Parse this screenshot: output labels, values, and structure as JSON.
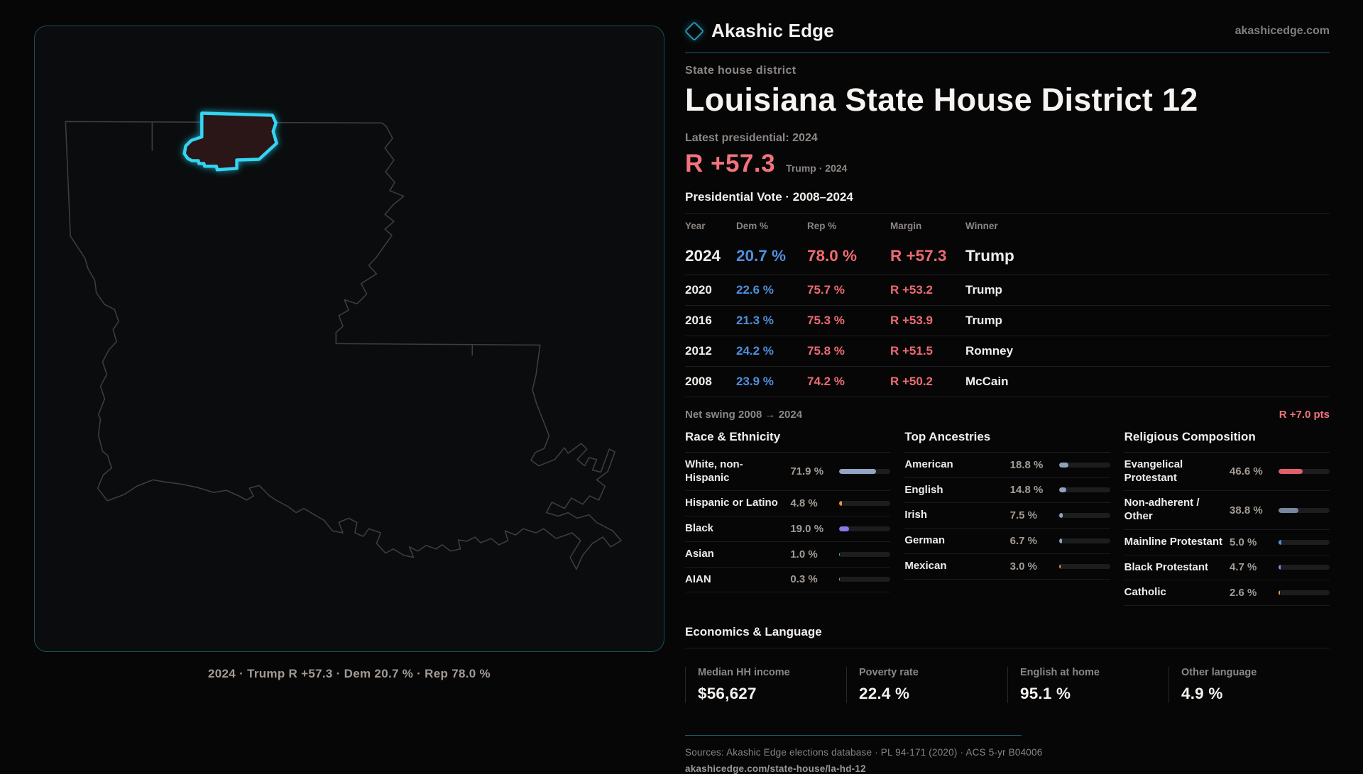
{
  "header": {
    "brand": "Akashic Edge",
    "site": "akashicedge.com",
    "kicker": "State house district",
    "title": "Louisiana State House District 12"
  },
  "summary": {
    "latest_label": "Latest presidential: 2024",
    "margin": "R +57.3",
    "margin_note": "Trump · 2024"
  },
  "vote_table": {
    "title": "Presidential Vote · 2008–2024",
    "columns": [
      "Year",
      "Dem %",
      "Rep %",
      "Margin",
      "Winner"
    ],
    "rows": [
      {
        "year": "2024",
        "dem": "20.7 %",
        "rep": "78.0 %",
        "margin": "R +57.3",
        "winner": "Trump",
        "emphasis": true
      },
      {
        "year": "2020",
        "dem": "22.6 %",
        "rep": "75.7 %",
        "margin": "R +53.2",
        "winner": "Trump",
        "emphasis": false
      },
      {
        "year": "2016",
        "dem": "21.3 %",
        "rep": "75.3 %",
        "margin": "R +53.9",
        "winner": "Trump",
        "emphasis": false
      },
      {
        "year": "2012",
        "dem": "24.2 %",
        "rep": "75.8 %",
        "margin": "R +51.5",
        "winner": "Romney",
        "emphasis": false
      },
      {
        "year": "2008",
        "dem": "23.9 %",
        "rep": "74.2 %",
        "margin": "R +50.2",
        "winner": "McCain",
        "emphasis": false
      }
    ]
  },
  "net_swing": {
    "label": "Net swing 2008 → 2024",
    "value": "R +7.0 pts"
  },
  "demographics": {
    "sections": [
      {
        "title": "Race & Ethnicity",
        "rows": [
          {
            "label": "White, non-Hispanic",
            "value": "71.9 %",
            "pct": 71.9,
            "color": "#93a4c4"
          },
          {
            "label": "Hispanic or Latino",
            "value": "4.8 %",
            "pct": 4.8,
            "color": "#e8992e"
          },
          {
            "label": "Black",
            "value": "19.0 %",
            "pct": 19.0,
            "color": "#8b79e8"
          },
          {
            "label": "Asian",
            "value": "1.0 %",
            "pct": 1.0,
            "color": "#2ec995"
          },
          {
            "label": "AIAN",
            "value": "0.3 %",
            "pct": 0.3,
            "color": "#93a4c4"
          }
        ]
      },
      {
        "title": "Top Ancestries",
        "rows": [
          {
            "label": "American",
            "value": "18.8 %",
            "pct": 18.8,
            "color": "#8fa3c0"
          },
          {
            "label": "English",
            "value": "14.8 %",
            "pct": 14.8,
            "color": "#8fa3c0"
          },
          {
            "label": "Irish",
            "value": "7.5 %",
            "pct": 7.5,
            "color": "#8fa3c0"
          },
          {
            "label": "German",
            "value": "6.7 %",
            "pct": 6.7,
            "color": "#8fa3c0"
          },
          {
            "label": "Mexican",
            "value": "3.0 %",
            "pct": 3.0,
            "color": "#e8992e"
          }
        ]
      },
      {
        "title": "Religious Composition",
        "rows": [
          {
            "label": "Evangelical Protestant",
            "value": "46.6 %",
            "pct": 46.6,
            "color": "#e06069"
          },
          {
            "label": "Non-adherent / Other",
            "value": "38.8 %",
            "pct": 38.8,
            "color": "#78879f"
          },
          {
            "label": "Mainline Protestant",
            "value": "5.0 %",
            "pct": 5.0,
            "color": "#4f8fe8"
          },
          {
            "label": "Black Protestant",
            "value": "4.7 %",
            "pct": 4.7,
            "color": "#9a7fe8"
          },
          {
            "label": "Catholic",
            "value": "2.6 %",
            "pct": 2.6,
            "color": "#d9a334"
          }
        ]
      }
    ]
  },
  "economics": {
    "title": "Economics & Language",
    "stats": [
      {
        "label": "Median HH income",
        "value": "$56,627"
      },
      {
        "label": "Poverty rate",
        "value": "22.4 %"
      },
      {
        "label": "English at home",
        "value": "95.1 %"
      },
      {
        "label": "Other language",
        "value": "4.9 %"
      }
    ]
  },
  "footer": {
    "sources": "Sources: Akashic Edge elections database · PL 94-171 (2020) · ACS 5-yr B04006",
    "url": "akashicedge.com/state-house/la-hd-12"
  },
  "map": {
    "caption": "2024 · Trump R +57.3 · Dem 20.7 % · Rep 78.0 %",
    "state_outline_color": "#3b3e42",
    "district_fill": "#2b1518",
    "district_stroke": "#35d4f2"
  },
  "colors": {
    "accent_teal": "#1d5f6b",
    "dem_blue": "#4f8fdc",
    "rep_red": "#ee6b72",
    "margin_red": "#f2737b",
    "background": "#060607",
    "panel_background": "#0a0c0d"
  }
}
